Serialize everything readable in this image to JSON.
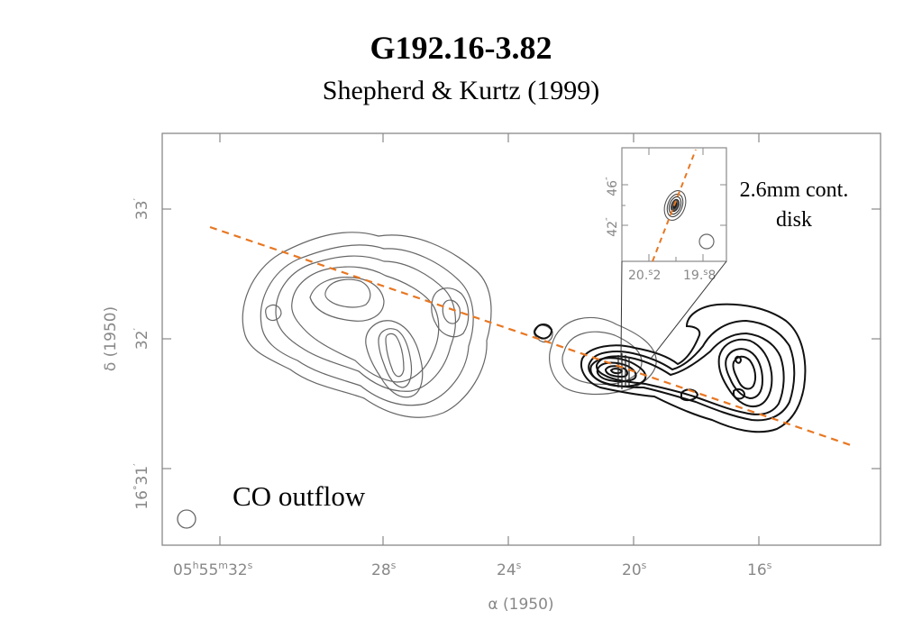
{
  "header": {
    "title": "G192.16-3.82",
    "subtitle": "Shepherd & Kurtz (1999)"
  },
  "axes": {
    "xlabel": "α (1950)",
    "ylabel": "δ (1950)",
    "xticks": [
      {
        "base": "05",
        "sup1": "h",
        "mid": "55",
        "sup2": "m",
        "end": "32",
        "sup3": "s"
      },
      {
        "base": "28",
        "sup": "s"
      },
      {
        "base": "24",
        "sup": "s"
      },
      {
        "base": "20",
        "sup": "s"
      },
      {
        "base": "16",
        "sup": "s"
      }
    ],
    "yticks": [
      {
        "main": "33",
        "sup": "′"
      },
      {
        "main": "32",
        "sup": "′"
      },
      {
        "pre": "16",
        "deg": "°",
        "main": "31",
        "sup": "′"
      }
    ]
  },
  "inset": {
    "xticks": [
      {
        "base": "20.",
        "sup": "s",
        "end": "2"
      },
      {
        "base": "19.",
        "sup": "s",
        "end": "8"
      }
    ],
    "yticks": [
      {
        "main": "46",
        "sup": "″"
      },
      {
        "main": "42",
        "sup": "″"
      }
    ]
  },
  "annotations": {
    "inset_label_line1": "2.6mm cont.",
    "inset_label_line2": "disk",
    "outflow_label": "CO outflow"
  },
  "colors": {
    "axis_line": "#888888",
    "outflow_axis": "#E87722",
    "blue_lobe_contours": "#666666",
    "red_lobe_contours": "#111111"
  }
}
